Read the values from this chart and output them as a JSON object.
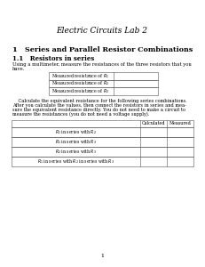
{
  "title": "Electric Circuits Lab 2",
  "section_title": "1   Series and Parallel Resistor Combinations",
  "subsection_title": "1.1   Resistors in series",
  "para1_line1": "Using a multimeter, measure the resistances of the three resistors that you",
  "para1_line2": "have.",
  "table1_rows": [
    "Measured resistance of $R_1$",
    "Measured resistance of $R_2$",
    "Measured resistance of $R_3$"
  ],
  "para2_line1": "    Calculate the equivalent resistance for the following series combinations.",
  "para2_line2": "After you calculate the values, then connect the resistors in series and mea-",
  "para2_line3": "sure the equivalent resistance directly. You do not need to make a circuit to",
  "para2_line4": "measure the resistances (you do not need a voltage supply).",
  "col_header_calc": "Calculated",
  "col_header_meas": "Measured",
  "table2_rows": [
    "$R_1$ in series with $R_2$",
    "$R_1$ in series with $R_3$",
    "$R_2$ in series with $R_3$",
    "$R_1$ in series with $R_2$ in series with $R_3$"
  ],
  "page_number": "1",
  "bg_color": "#ffffff"
}
